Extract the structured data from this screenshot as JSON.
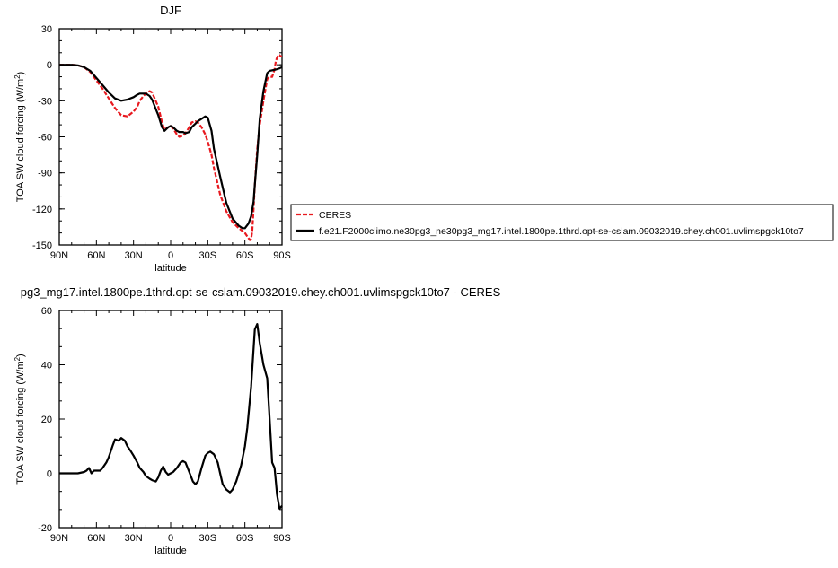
{
  "chart_data": [
    {
      "type": "line",
      "title": "DJF",
      "xlabel": "latitude",
      "ylabel": "TOA SW cloud forcing (W/m",
      "ylabel_sup": "2",
      "ylabel_close": ")",
      "xlim": [
        90,
        -90
      ],
      "ylim": [
        -150,
        30
      ],
      "xticks": [
        90,
        60,
        30,
        0,
        -30,
        -60,
        -90
      ],
      "xtick_labels": [
        "90N",
        "60N",
        "30N",
        "0",
        "30S",
        "60S",
        "90S"
      ],
      "yticks": [
        30,
        0,
        -30,
        -60,
        -90,
        -120,
        -150
      ],
      "ytick_labels": [
        "30",
        "0",
        "-30",
        "-60",
        "-90",
        "-120",
        "-150"
      ],
      "legend_position": "right",
      "series": [
        {
          "name": "CERES",
          "color": "#e8191f",
          "dashed": true,
          "x": [
            90,
            85,
            80,
            75,
            70,
            65,
            60,
            55,
            50,
            45,
            40,
            35,
            30,
            27,
            25,
            22,
            20,
            17,
            15,
            10,
            7,
            5,
            2,
            0,
            -2,
            -5,
            -7,
            -10,
            -12,
            -15,
            -17,
            -20,
            -22,
            -25,
            -28,
            -30,
            -33,
            -35,
            -40,
            -45,
            -50,
            -55,
            -60,
            -62,
            -64,
            -65,
            -66,
            -67,
            -68,
            -70,
            -72,
            -75,
            -78,
            -80,
            -82,
            -84,
            -85,
            -86,
            -87,
            -88,
            -89,
            -90
          ],
          "y": [
            0,
            0,
            0,
            -0.5,
            -2,
            -6,
            -13,
            -20,
            -28,
            -36,
            -42,
            -43,
            -39,
            -35,
            -30,
            -26,
            -24,
            -22,
            -23,
            -35,
            -48,
            -54,
            -52,
            -51,
            -53,
            -58,
            -60,
            -59,
            -57,
            -52,
            -48,
            -47,
            -48,
            -52,
            -58,
            -64,
            -75,
            -86,
            -108,
            -122,
            -131,
            -136,
            -140,
            -143,
            -146,
            -145,
            -138,
            -120,
            -100,
            -70,
            -50,
            -30,
            -12,
            -10,
            -10,
            -4,
            3,
            6,
            8,
            8,
            7,
            7
          ]
        },
        {
          "name": "f.e21.F2000climo.ne30pg3_ne30pg3_mg17.intel.1800pe.1thrd.opt-se-cslam.09032019.chey.ch001.uvlimspgck10to7",
          "color": "#000000",
          "dashed": false,
          "x": [
            90,
            85,
            80,
            75,
            70,
            65,
            60,
            55,
            50,
            45,
            40,
            35,
            30,
            27,
            25,
            22,
            20,
            17,
            15,
            10,
            7,
            5,
            2,
            0,
            -2,
            -5,
            -7,
            -10,
            -12,
            -15,
            -17,
            -20,
            -22,
            -25,
            -28,
            -30,
            -33,
            -35,
            -40,
            -45,
            -50,
            -55,
            -58,
            -60,
            -63,
            -65,
            -67,
            -68,
            -70,
            -72,
            -75,
            -78,
            -80,
            -85,
            -88,
            -90
          ],
          "y": [
            0,
            0,
            0,
            -0.5,
            -2,
            -5,
            -11,
            -17,
            -23,
            -28,
            -30,
            -29,
            -27,
            -25,
            -24,
            -24,
            -24,
            -26,
            -29,
            -42,
            -52,
            -55,
            -52,
            -51,
            -52,
            -55,
            -56,
            -56,
            -57,
            -56,
            -52,
            -49,
            -47,
            -45,
            -43,
            -44,
            -55,
            -70,
            -93,
            -115,
            -128,
            -134,
            -136,
            -136,
            -132,
            -126,
            -114,
            -100,
            -75,
            -45,
            -22,
            -7,
            -5,
            -4,
            -3,
            -2
          ]
        }
      ]
    },
    {
      "type": "line",
      "title": "pg3_mg17.intel.1800pe.1thrd.opt-se-cslam.09032019.chey.ch001.uvlimspgck10to7 - CERES",
      "xlabel": "latitude",
      "ylabel": "TOA SW cloud forcing (W/m",
      "ylabel_sup": "2",
      "ylabel_close": ")",
      "xlim": [
        90,
        -90
      ],
      "ylim": [
        -20,
        60
      ],
      "xticks": [
        90,
        60,
        30,
        0,
        -30,
        -60,
        -90
      ],
      "xtick_labels": [
        "90N",
        "60N",
        "30N",
        "0",
        "30S",
        "60S",
        "90S"
      ],
      "yticks": [
        60,
        40,
        20,
        0,
        -20
      ],
      "ytick_labels": [
        "60",
        "40",
        "20",
        "0",
        "-20"
      ],
      "series": [
        {
          "color": "#000000",
          "x": [
            90,
            85,
            80,
            75,
            70,
            68,
            66,
            64,
            62,
            60,
            57,
            55,
            52,
            50,
            47,
            45,
            42,
            40,
            37,
            35,
            32,
            30,
            27,
            25,
            22,
            20,
            17,
            15,
            12,
            10,
            8,
            6,
            4,
            2,
            0,
            -2,
            -5,
            -8,
            -10,
            -12,
            -15,
            -18,
            -20,
            -22,
            -25,
            -28,
            -30,
            -32,
            -35,
            -38,
            -40,
            -42,
            -45,
            -48,
            -50,
            -53,
            -55,
            -57,
            -60,
            -62,
            -65,
            -68,
            -70,
            -72,
            -75,
            -78,
            -80,
            -82,
            -84,
            -86,
            -88,
            -90
          ],
          "y": [
            0,
            0,
            0,
            0,
            0.5,
            1,
            2,
            0,
            1,
            1,
            1,
            2,
            4,
            6,
            10,
            12.5,
            12,
            13,
            12,
            10,
            8,
            6.5,
            4,
            2,
            0.5,
            -1,
            -2,
            -2.5,
            -3,
            -1.5,
            1,
            2.5,
            0.5,
            -0.5,
            0,
            0.5,
            2,
            4,
            4.5,
            4,
            0.5,
            -3,
            -4,
            -3,
            2,
            6.5,
            7.5,
            8,
            7,
            4,
            0,
            -4,
            -6,
            -7,
            -6,
            -3,
            0,
            3,
            10,
            17,
            32,
            53,
            55,
            48,
            40,
            35,
            20,
            4,
            2,
            -8,
            -13,
            -12
          ]
        }
      ]
    }
  ]
}
